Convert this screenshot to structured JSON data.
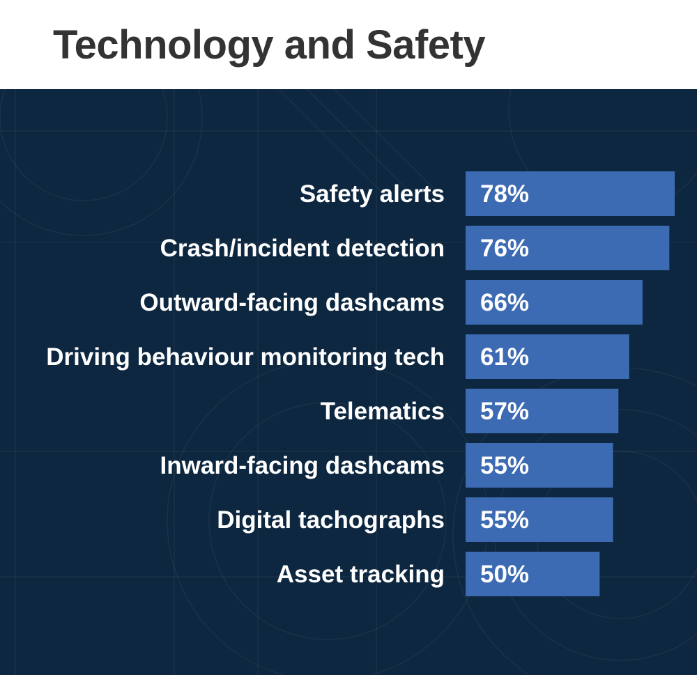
{
  "title": "Technology and Safety",
  "colors": {
    "background": "#0d2740",
    "bar": "#3d6bb3",
    "text": "#ffffff",
    "title": "#333333"
  },
  "chart_data": {
    "type": "bar",
    "orientation": "horizontal",
    "title": "Technology and Safety",
    "categories": [
      "Safety alerts",
      "Crash/incident detection",
      "Outward-facing dashcams",
      "Driving behaviour monitoring tech",
      "Telematics",
      "Inward-facing dashcams",
      "Digital tachographs",
      "Asset tracking"
    ],
    "values": [
      78,
      76,
      66,
      61,
      57,
      55,
      55,
      50
    ],
    "value_labels": [
      "78%",
      "76%",
      "66%",
      "61%",
      "57%",
      "55%",
      "55%",
      "50%"
    ],
    "unit": "%",
    "xlim": [
      0,
      78
    ],
    "grid": false,
    "legend": "none"
  }
}
